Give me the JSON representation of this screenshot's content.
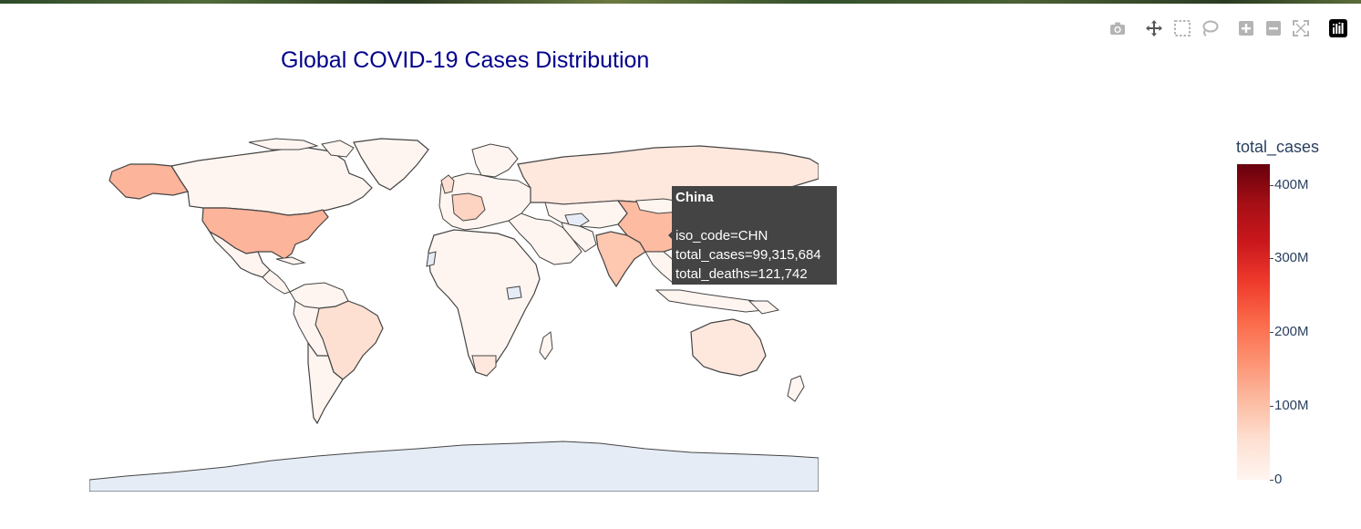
{
  "title": "Global COVID-19 Cases Distribution",
  "modebar": {
    "buttons": [
      {
        "name": "camera-icon",
        "tooltip": "Download plot as a png"
      },
      {
        "name": "pan-icon",
        "tooltip": "Pan"
      },
      {
        "name": "box-select-icon",
        "tooltip": "Box Select"
      },
      {
        "name": "lasso-select-icon",
        "tooltip": "Lasso Select"
      },
      {
        "name": "zoom-in-icon",
        "tooltip": "Zoom in"
      },
      {
        "name": "zoom-out-icon",
        "tooltip": "Zoom out"
      },
      {
        "name": "reset-view-icon",
        "tooltip": "Reset view"
      },
      {
        "name": "plotly-logo-icon",
        "tooltip": "Produced with Plotly"
      }
    ],
    "icon_color": "#b4b4b4",
    "logo_color": "#000000"
  },
  "hover": {
    "name": "China",
    "lines": [
      "iso_code=CHN",
      "total_cases=99,315,684",
      "total_deaths=121,742"
    ],
    "background": "#444444"
  },
  "colorbar": {
    "title": "total_cases",
    "colorscale": "Reds",
    "min": 0,
    "max": 428000000,
    "ticks": [
      {
        "value": 0,
        "label": "0"
      },
      {
        "value": 100000000,
        "label": "100M"
      },
      {
        "value": 200000000,
        "label": "200M"
      },
      {
        "value": 300000000,
        "label": "300M"
      },
      {
        "value": 400000000,
        "label": "400M"
      }
    ]
  },
  "map_colors": {
    "land_nodata": "#e5ecf6",
    "border": "#444444",
    "low": "#fff5f0",
    "light": "#fee7dd",
    "medium": "#fdd3c1",
    "usa": "#fcb49a",
    "china": "#fdbba1",
    "india": "#fdc7b0",
    "brazil": "#fde0d2",
    "alaska": "#fcb49a"
  }
}
